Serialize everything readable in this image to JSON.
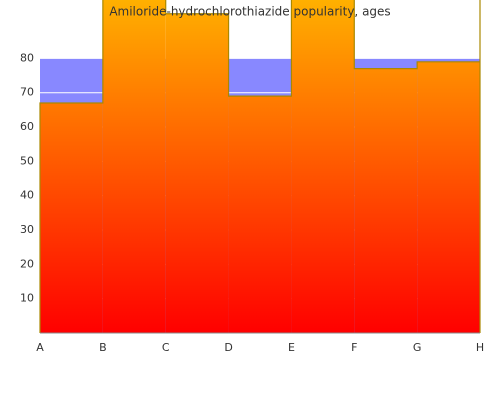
{
  "chart_data": {
    "type": "step",
    "title": "Amiloride-hydrochlorothiazide popularity, ages",
    "categories": [
      "A",
      "B",
      "C",
      "D",
      "E",
      "F",
      "G",
      "H"
    ],
    "values": [
      67,
      100,
      93,
      69,
      100,
      77,
      79,
      100
    ],
    "ylim": [
      0,
      97
    ],
    "yticks": [
      10,
      20,
      30,
      40,
      50,
      60,
      70,
      80
    ],
    "band_color": "#8888ff",
    "line_color": "#aa8800",
    "grid": true
  }
}
